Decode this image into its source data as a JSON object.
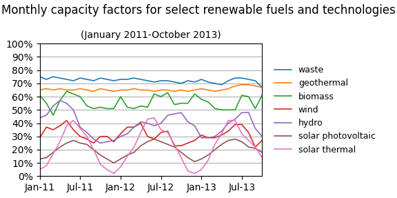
{
  "chart_data": {
    "type": "line",
    "title": "Monthly capacity factors for select renewable fuels and technologies",
    "subtitle": "(January 2011-October 2013)",
    "categories": [
      "Jan-11",
      null,
      null,
      null,
      null,
      null,
      "Jul-11",
      null,
      null,
      null,
      null,
      null,
      "Jan-12",
      null,
      null,
      null,
      null,
      null,
      "Jul-12",
      null,
      null,
      null,
      null,
      null,
      "Jan-13",
      null,
      null,
      null,
      null,
      null,
      "Jul-13",
      null,
      null,
      null
    ],
    "series": [
      {
        "name": "waste",
        "values": [
          75,
          73,
          75,
          74,
          73,
          72,
          74,
          73,
          72,
          74,
          73,
          72,
          73,
          73,
          74,
          73,
          72,
          71,
          72,
          72,
          71,
          70,
          72,
          71,
          73,
          71,
          70,
          69,
          72,
          74,
          74,
          73,
          72,
          67
        ]
      },
      {
        "name": "geothermal",
        "values": [
          65,
          66,
          65,
          66,
          65,
          65,
          66,
          65,
          64,
          66,
          65,
          64,
          65,
          65,
          66,
          65,
          65,
          64,
          65,
          65,
          64,
          65,
          64,
          65,
          66,
          65,
          64,
          65,
          66,
          68,
          69,
          69,
          68,
          67
        ]
      },
      {
        "name": "biomass",
        "values": [
          61,
          55,
          46,
          57,
          64,
          62,
          60,
          53,
          51,
          52,
          51,
          51,
          60,
          52,
          51,
          53,
          52,
          62,
          60,
          63,
          54,
          55,
          55,
          62,
          58,
          56,
          51,
          50,
          50,
          50,
          61,
          60,
          51,
          61
        ]
      },
      {
        "name": "wind",
        "values": [
          29,
          37,
          35,
          38,
          42,
          35,
          30,
          28,
          25,
          30,
          30,
          26,
          32,
          37,
          37,
          40,
          30,
          28,
          33,
          34,
          23,
          23,
          25,
          27,
          31,
          29,
          29,
          31,
          34,
          39,
          39,
          33,
          22,
          27
        ]
      },
      {
        "name": "hydro",
        "values": [
          44,
          46,
          53,
          57,
          55,
          50,
          37,
          33,
          28,
          25,
          26,
          27,
          30,
          32,
          37,
          41,
          40,
          38,
          40,
          46,
          47,
          48,
          41,
          38,
          29,
          29,
          30,
          34,
          40,
          43,
          48,
          48,
          36,
          30
        ]
      },
      {
        "name": "solar photovoltaic",
        "values": [
          13,
          14,
          18,
          22,
          25,
          27,
          25,
          24,
          20,
          16,
          13,
          10,
          13,
          16,
          18,
          23,
          26,
          28,
          26,
          24,
          22,
          18,
          14,
          11,
          13,
          16,
          20,
          24,
          27,
          28,
          26,
          22,
          21,
          18
        ]
      },
      {
        "name": "solar thermal",
        "values": [
          5,
          8,
          17,
          26,
          38,
          42,
          36,
          30,
          20,
          9,
          5,
          2,
          7,
          15,
          22,
          33,
          43,
          44,
          35,
          33,
          24,
          14,
          4,
          2,
          5,
          12,
          24,
          32,
          42,
          42,
          32,
          27,
          22,
          14
        ]
      }
    ],
    "ylim": [
      0,
      100
    ],
    "yticks": [
      {
        "value": 0,
        "label": "0%"
      },
      {
        "value": 10,
        "label": "10%"
      },
      {
        "value": 20,
        "label": "20%"
      },
      {
        "value": 30,
        "label": "30%"
      },
      {
        "value": 40,
        "label": "40%"
      },
      {
        "value": 50,
        "label": "50%"
      },
      {
        "value": 60,
        "label": "60%"
      },
      {
        "value": 70,
        "label": "70%"
      },
      {
        "value": 80,
        "label": "80%"
      },
      {
        "value": 90,
        "label": "90%"
      },
      {
        "value": 100,
        "label": "100%"
      }
    ],
    "grid": true,
    "legend": "center left"
  }
}
